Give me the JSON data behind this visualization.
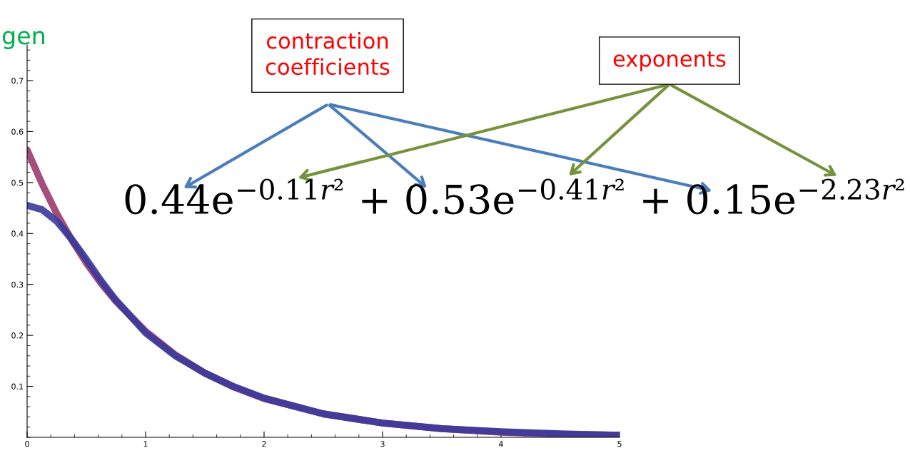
{
  "chart_data": {
    "type": "line",
    "x": [
      0,
      0.125,
      0.25,
      0.375,
      0.5,
      0.625,
      0.75,
      1,
      1.25,
      1.5,
      1.75,
      2,
      2.5,
      3,
      3.5,
      4,
      4.5,
      5
    ],
    "series": [
      {
        "color": "#9b3a6e",
        "values": [
          0.564,
          0.498,
          0.439,
          0.388,
          0.342,
          0.302,
          0.267,
          0.208,
          0.162,
          0.126,
          0.098,
          0.076,
          0.046,
          0.028,
          0.017,
          0.01,
          0.006,
          0.004
        ]
      },
      {
        "color": "#3a3a9c",
        "values": [
          0.455,
          0.447,
          0.424,
          0.389,
          0.349,
          0.307,
          0.269,
          0.205,
          0.16,
          0.126,
          0.099,
          0.077,
          0.046,
          0.028,
          0.017,
          0.011,
          0.007,
          0.004
        ]
      }
    ],
    "xlim": [
      0,
      5
    ],
    "ylim": [
      0,
      0.77
    ],
    "xticks": [
      0,
      1,
      2,
      3,
      4,
      5
    ],
    "yticks": [
      0.1,
      0.2,
      0.3,
      0.4,
      0.5,
      0.6,
      0.7
    ],
    "grid": false,
    "marker": "none",
    "line_style": "solid",
    "annotations": [
      "gen",
      "contraction\ncoefficients",
      "exponents",
      "0.44e$^{−0.11r²}$ + 0.53e$^{−0.41r²}$ + 0.15e$^{−2.23r²}$"
    ]
  }
}
